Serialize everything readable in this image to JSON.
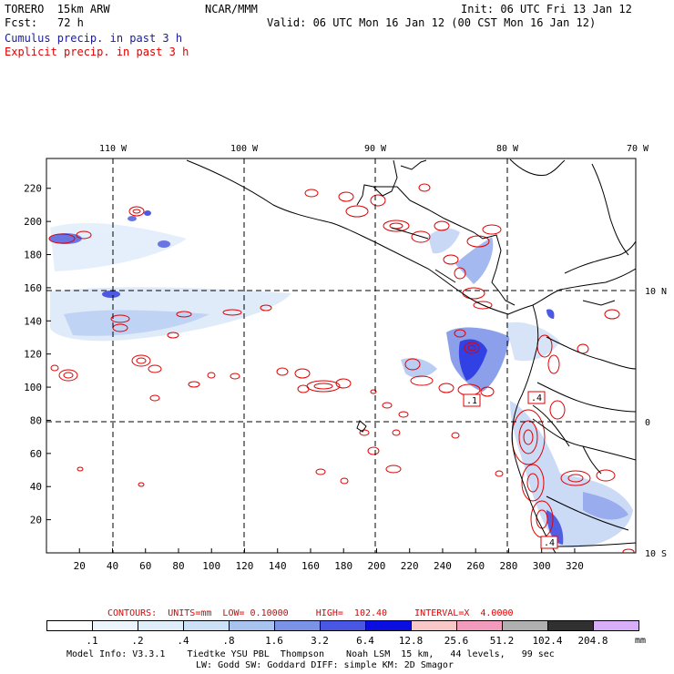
{
  "header": {
    "model": "TORERO  15km ARW",
    "org": "NCAR/MMM",
    "init": "Init: 06 UTC Fri 13 Jan 12",
    "fcst_label": "Fcst:",
    "fcst_value": "72 h",
    "valid": "Valid: 06 UTC Mon 16 Jan 12 (00 CST Mon 16 Jan 12)",
    "field1": "Cumulus precip. in past 3 h",
    "field2": "Explicit precip. in past 3 h"
  },
  "colors": {
    "cumulus_label": "#1a1aa0",
    "explicit_label": "#e00000",
    "coast": "#000000",
    "contour": "#e00000"
  },
  "map": {
    "lon_labels": [
      "110 W",
      "100 W",
      "90 W",
      "80 W",
      "70 W"
    ],
    "lat_labels": [
      "10 N",
      "0",
      "10 S"
    ],
    "y_ticks": [
      "220",
      "200",
      "180",
      "160",
      "140",
      "120",
      "100",
      "80",
      "60",
      "40",
      "20"
    ],
    "x_ticks": [
      "20",
      "40",
      "60",
      "80",
      "100",
      "120",
      "140",
      "160",
      "180",
      "200",
      "220",
      "240",
      "260",
      "280",
      "300",
      "320"
    ],
    "max_labels": [
      ".1",
      ".4",
      ".4"
    ]
  },
  "contour_info": {
    "text": "CONTOURS:  UNITS=mm  LOW= 0.10000     HIGH=  102.40     INTERVAL=X  4.0000"
  },
  "colorbar": {
    "labels": [
      ".1",
      ".2",
      ".4",
      ".8",
      "1.6",
      "3.2",
      "6.4",
      "12.8",
      "25.6",
      "51.2",
      "102.4",
      "204.8"
    ],
    "unit": "mm",
    "colors": [
      "#ffffff",
      "#ecf4fc",
      "#e0eefa",
      "#cce0f6",
      "#a8c4ee",
      "#7b93e6",
      "#4a56e4",
      "#0b0ee0",
      "#f8c8c8",
      "#f29bbc",
      "#b0b0b0",
      "#303030",
      "#d8aef8"
    ]
  },
  "footer": {
    "line1": "Model Info: V3.3.1    Tiedtke YSU PBL  Thompson    Noah LSM  15 km,   44 levels,   99 sec",
    "line2": "LW: Godd SW: Goddard DIFF: simple KM: 2D Smagor"
  }
}
